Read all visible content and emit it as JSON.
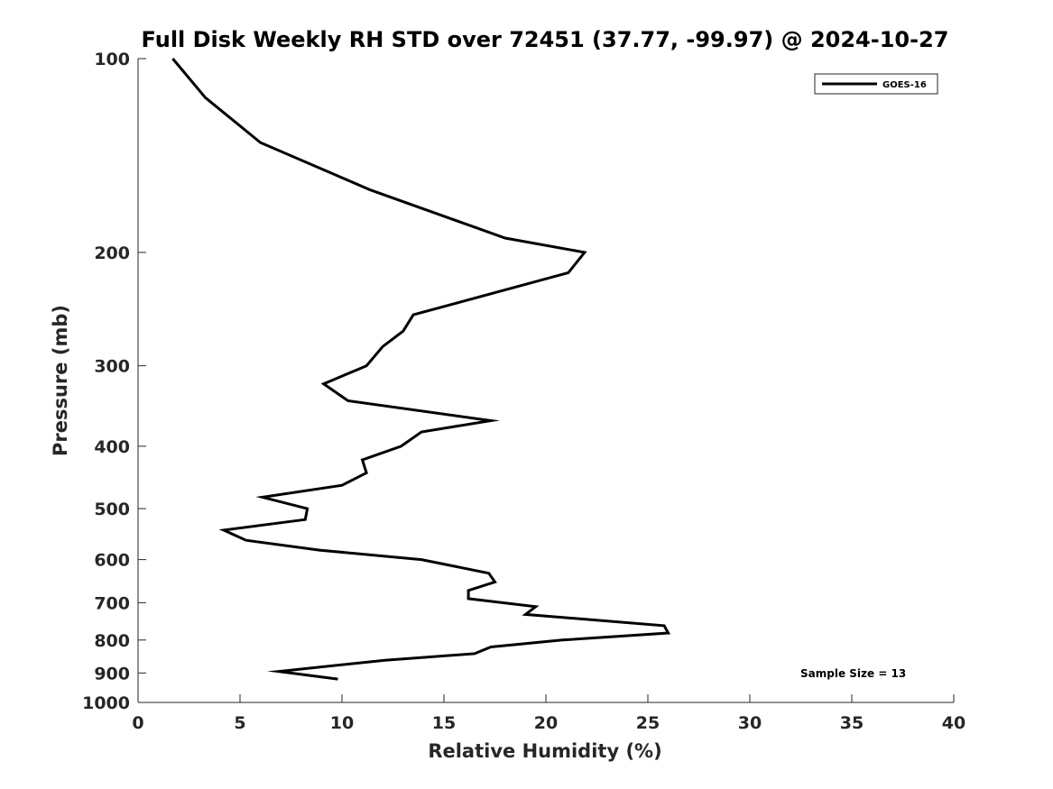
{
  "chart_data": {
    "type": "line",
    "title": "Full Disk Weekly RH STD over 72451 (37.77, -99.97) @ 2024-10-27",
    "xlabel": "Relative Humidity (%)",
    "ylabel": "Pressure (mb)",
    "xlim": [
      0,
      40
    ],
    "ylim": [
      100,
      1000
    ],
    "y_scale": "log",
    "y_reversed": true,
    "x_ticks": [
      0,
      5,
      10,
      15,
      20,
      25,
      30,
      35,
      40
    ],
    "y_ticks": [
      100,
      200,
      300,
      400,
      500,
      600,
      700,
      800,
      900,
      1000
    ],
    "grid": false,
    "legend_position": "top-right",
    "annotation": "Sample Size = 13",
    "series": [
      {
        "name": "GOES-16",
        "color": "#000000",
        "x": [
          1.7,
          3.3,
          6.0,
          11.4,
          18.0,
          21.9,
          21.1,
          13.5,
          13.0,
          12.0,
          11.2,
          9.1,
          10.3,
          17.3,
          13.9,
          12.9,
          11.0,
          11.2,
          10.0,
          6.1,
          8.3,
          8.2,
          4.2,
          5.3,
          8.9,
          13.9,
          17.2,
          17.5,
          16.2,
          16.2,
          19.5,
          19.0,
          25.8,
          26.0,
          20.8,
          17.3,
          16.5,
          12.1,
          6.9,
          9.8
        ],
        "y": [
          100,
          115,
          135,
          160,
          190,
          200,
          215,
          250,
          265,
          280,
          300,
          320,
          340,
          365,
          380,
          400,
          420,
          440,
          460,
          480,
          500,
          520,
          540,
          560,
          580,
          600,
          630,
          650,
          670,
          690,
          710,
          730,
          760,
          780,
          800,
          820,
          840,
          860,
          895,
          920
        ]
      }
    ]
  }
}
